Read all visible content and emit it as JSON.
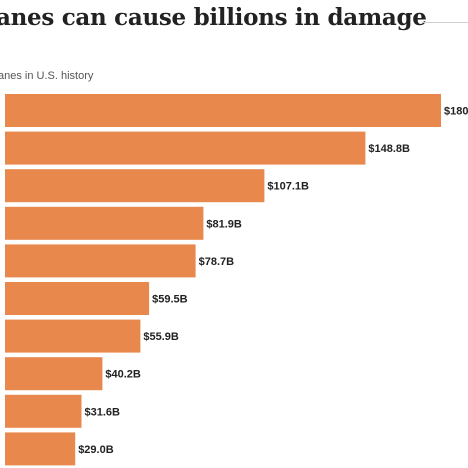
{
  "title": "anes can cause billions in damage",
  "subtitle": "anes in U.S. history",
  "colors": {
    "bar": "#e8884d",
    "text": "#222222",
    "subtitle": "#555555"
  },
  "chart_data": {
    "type": "bar",
    "orientation": "horizontal",
    "values": [
      180,
      148.8,
      107.1,
      81.9,
      78.7,
      59.5,
      55.9,
      40.2,
      31.6,
      29.0
    ],
    "data_labels": [
      "$180",
      "$148.8B",
      "$107.1B",
      "$81.9B",
      "$78.7B",
      "$59.5B",
      "$55.9B",
      "$40.2B",
      "$31.6B",
      "$29.0B"
    ],
    "unit": "billions USD",
    "xlim": [
      0,
      180
    ],
    "grid": false,
    "legend": "none"
  }
}
